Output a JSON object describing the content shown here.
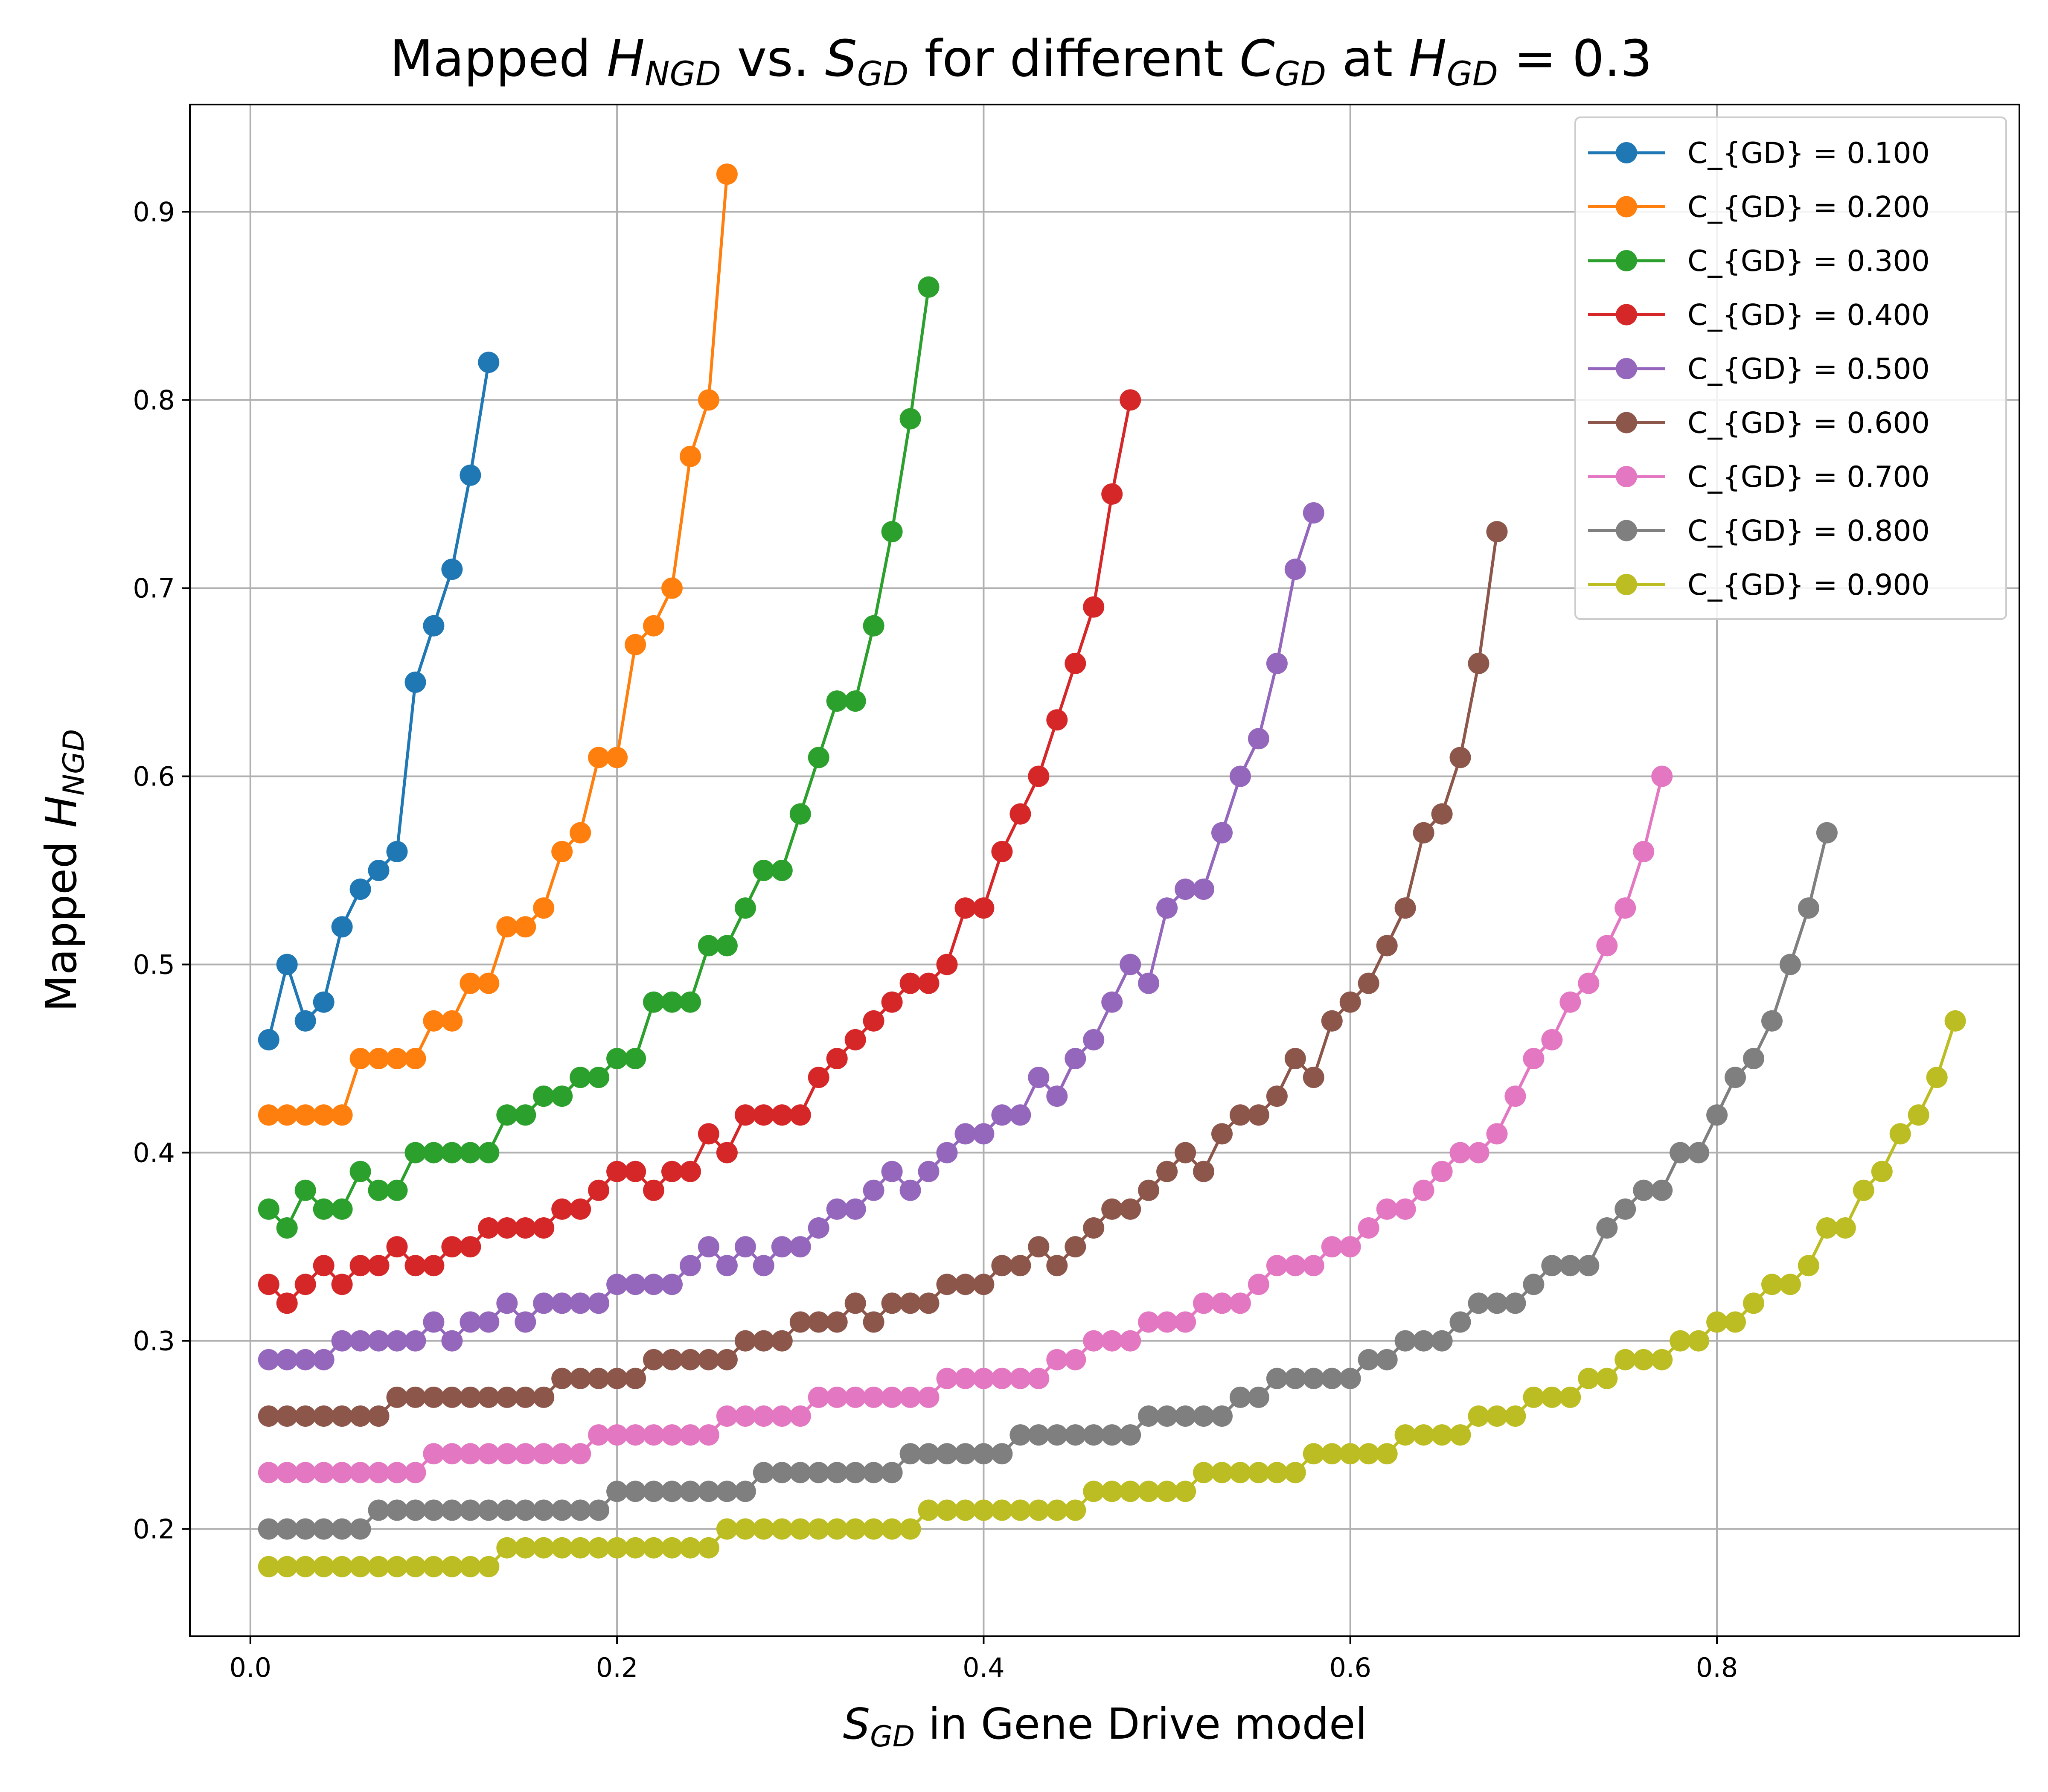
{
  "chart_data": {
    "type": "line",
    "title": {
      "pre": "Mapped ",
      "h": "H",
      "h_sub": "NGD",
      "mid": " vs. ",
      "s": "S",
      "s_sub": "GD",
      "mid2": " for different ",
      "c": "C",
      "c_sub": "GD",
      "mid3": " at ",
      "h2": "H",
      "h2_sub": "GD",
      "post": " = 0.3"
    },
    "xlabel": {
      "s": "S",
      "s_sub": "GD",
      "post": " in Gene Drive model"
    },
    "ylabel": {
      "pre": "Mapped ",
      "h": "H",
      "h_sub": "NGD"
    },
    "xlim": [
      -0.033,
      0.965
    ],
    "ylim": [
      0.143,
      0.957
    ],
    "xticks": [
      0.0,
      0.2,
      0.4,
      0.6,
      0.8
    ],
    "xtick_labels": [
      "0.0",
      "0.2",
      "0.4",
      "0.6",
      "0.8"
    ],
    "yticks": [
      0.2,
      0.3,
      0.4,
      0.5,
      0.6,
      0.7,
      0.8,
      0.9
    ],
    "ytick_labels": [
      "0.2",
      "0.3",
      "0.4",
      "0.5",
      "0.6",
      "0.7",
      "0.8",
      "0.9"
    ],
    "grid": true,
    "legend_position": "top-right",
    "series": [
      {
        "name": "C_{GD} = 0.100",
        "color": "#1f77b4",
        "values": [
          0.46,
          0.5,
          0.47,
          0.48,
          0.52,
          0.54,
          0.55,
          0.56,
          0.65,
          0.68,
          0.71,
          0.76,
          0.82
        ]
      },
      {
        "name": "C_{GD} = 0.200",
        "color": "#ff7f0e",
        "values": [
          0.42,
          0.42,
          0.42,
          0.42,
          0.42,
          0.45,
          0.45,
          0.45,
          0.45,
          0.47,
          0.47,
          0.49,
          0.49,
          0.52,
          0.52,
          0.53,
          0.56,
          0.57,
          0.61,
          0.61,
          0.67,
          0.68,
          0.7,
          0.77,
          0.8,
          0.92
        ]
      },
      {
        "name": "C_{GD} = 0.300",
        "color": "#2ca02c",
        "values": [
          0.37,
          0.36,
          0.38,
          0.37,
          0.37,
          0.39,
          0.38,
          0.38,
          0.4,
          0.4,
          0.4,
          0.4,
          0.4,
          0.42,
          0.42,
          0.43,
          0.43,
          0.44,
          0.44,
          0.45,
          0.45,
          0.48,
          0.48,
          0.48,
          0.51,
          0.51,
          0.53,
          0.55,
          0.55,
          0.58,
          0.61,
          0.64,
          0.64,
          0.68,
          0.73,
          0.79,
          0.86
        ]
      },
      {
        "name": "C_{GD} = 0.400",
        "color": "#d62728",
        "values": [
          0.33,
          0.32,
          0.33,
          0.34,
          0.33,
          0.34,
          0.34,
          0.35,
          0.34,
          0.34,
          0.35,
          0.35,
          0.36,
          0.36,
          0.36,
          0.36,
          0.37,
          0.37,
          0.38,
          0.39,
          0.39,
          0.38,
          0.39,
          0.39,
          0.41,
          0.4,
          0.42,
          0.42,
          0.42,
          0.42,
          0.44,
          0.45,
          0.46,
          0.47,
          0.48,
          0.49,
          0.49,
          0.5,
          0.53,
          0.53,
          0.56,
          0.58,
          0.6,
          0.63,
          0.66,
          0.69,
          0.75,
          0.8
        ]
      },
      {
        "name": "C_{GD} = 0.500",
        "color": "#9467bd",
        "values": [
          0.29,
          0.29,
          0.29,
          0.29,
          0.3,
          0.3,
          0.3,
          0.3,
          0.3,
          0.31,
          0.3,
          0.31,
          0.31,
          0.32,
          0.31,
          0.32,
          0.32,
          0.32,
          0.32,
          0.33,
          0.33,
          0.33,
          0.33,
          0.34,
          0.35,
          0.34,
          0.35,
          0.34,
          0.35,
          0.35,
          0.36,
          0.37,
          0.37,
          0.38,
          0.39,
          0.38,
          0.39,
          0.4,
          0.41,
          0.41,
          0.42,
          0.42,
          0.44,
          0.43,
          0.45,
          0.46,
          0.48,
          0.5,
          0.49,
          0.53,
          0.54,
          0.54,
          0.57,
          0.6,
          0.62,
          0.66,
          0.71,
          0.74
        ]
      },
      {
        "name": "C_{GD} = 0.600",
        "color": "#8c564b",
        "values": [
          0.26,
          0.26,
          0.26,
          0.26,
          0.26,
          0.26,
          0.26,
          0.27,
          0.27,
          0.27,
          0.27,
          0.27,
          0.27,
          0.27,
          0.27,
          0.27,
          0.28,
          0.28,
          0.28,
          0.28,
          0.28,
          0.29,
          0.29,
          0.29,
          0.29,
          0.29,
          0.3,
          0.3,
          0.3,
          0.31,
          0.31,
          0.31,
          0.32,
          0.31,
          0.32,
          0.32,
          0.32,
          0.33,
          0.33,
          0.33,
          0.34,
          0.34,
          0.35,
          0.34,
          0.35,
          0.36,
          0.37,
          0.37,
          0.38,
          0.39,
          0.4,
          0.39,
          0.41,
          0.42,
          0.42,
          0.43,
          0.45,
          0.44,
          0.47,
          0.48,
          0.49,
          0.51,
          0.53,
          0.57,
          0.58,
          0.61,
          0.66,
          0.73
        ]
      },
      {
        "name": "C_{GD} = 0.700",
        "color": "#e377c2",
        "values": [
          0.23,
          0.23,
          0.23,
          0.23,
          0.23,
          0.23,
          0.23,
          0.23,
          0.23,
          0.24,
          0.24,
          0.24,
          0.24,
          0.24,
          0.24,
          0.24,
          0.24,
          0.24,
          0.25,
          0.25,
          0.25,
          0.25,
          0.25,
          0.25,
          0.25,
          0.26,
          0.26,
          0.26,
          0.26,
          0.26,
          0.27,
          0.27,
          0.27,
          0.27,
          0.27,
          0.27,
          0.27,
          0.28,
          0.28,
          0.28,
          0.28,
          0.28,
          0.28,
          0.29,
          0.29,
          0.3,
          0.3,
          0.3,
          0.31,
          0.31,
          0.31,
          0.32,
          0.32,
          0.32,
          0.33,
          0.34,
          0.34,
          0.34,
          0.35,
          0.35,
          0.36,
          0.37,
          0.37,
          0.38,
          0.39,
          0.4,
          0.4,
          0.41,
          0.43,
          0.45,
          0.46,
          0.48,
          0.49,
          0.51,
          0.53,
          0.56,
          0.6
        ]
      },
      {
        "name": "C_{GD} = 0.800",
        "color": "#7f7f7f",
        "values": [
          0.2,
          0.2,
          0.2,
          0.2,
          0.2,
          0.2,
          0.21,
          0.21,
          0.21,
          0.21,
          0.21,
          0.21,
          0.21,
          0.21,
          0.21,
          0.21,
          0.21,
          0.21,
          0.21,
          0.22,
          0.22,
          0.22,
          0.22,
          0.22,
          0.22,
          0.22,
          0.22,
          0.23,
          0.23,
          0.23,
          0.23,
          0.23,
          0.23,
          0.23,
          0.23,
          0.24,
          0.24,
          0.24,
          0.24,
          0.24,
          0.24,
          0.25,
          0.25,
          0.25,
          0.25,
          0.25,
          0.25,
          0.25,
          0.26,
          0.26,
          0.26,
          0.26,
          0.26,
          0.27,
          0.27,
          0.28,
          0.28,
          0.28,
          0.28,
          0.28,
          0.29,
          0.29,
          0.3,
          0.3,
          0.3,
          0.31,
          0.32,
          0.32,
          0.32,
          0.33,
          0.34,
          0.34,
          0.34,
          0.36,
          0.37,
          0.38,
          0.38,
          0.4,
          0.4,
          0.42,
          0.44,
          0.45,
          0.47,
          0.5,
          0.53,
          0.57
        ]
      },
      {
        "name": "C_{GD} = 0.900",
        "color": "#bcbd22",
        "values": [
          0.18,
          0.18,
          0.18,
          0.18,
          0.18,
          0.18,
          0.18,
          0.18,
          0.18,
          0.18,
          0.18,
          0.18,
          0.18,
          0.19,
          0.19,
          0.19,
          0.19,
          0.19,
          0.19,
          0.19,
          0.19,
          0.19,
          0.19,
          0.19,
          0.19,
          0.2,
          0.2,
          0.2,
          0.2,
          0.2,
          0.2,
          0.2,
          0.2,
          0.2,
          0.2,
          0.2,
          0.21,
          0.21,
          0.21,
          0.21,
          0.21,
          0.21,
          0.21,
          0.21,
          0.21,
          0.22,
          0.22,
          0.22,
          0.22,
          0.22,
          0.22,
          0.23,
          0.23,
          0.23,
          0.23,
          0.23,
          0.23,
          0.24,
          0.24,
          0.24,
          0.24,
          0.24,
          0.25,
          0.25,
          0.25,
          0.25,
          0.26,
          0.26,
          0.26,
          0.27,
          0.27,
          0.27,
          0.28,
          0.28,
          0.29,
          0.29,
          0.29,
          0.3,
          0.3,
          0.31,
          0.31,
          0.32,
          0.33,
          0.33,
          0.34,
          0.36,
          0.36,
          0.38,
          0.39,
          0.41,
          0.42,
          0.44,
          0.47
        ]
      }
    ],
    "x_start": 0.01,
    "x_step": 0.01
  }
}
